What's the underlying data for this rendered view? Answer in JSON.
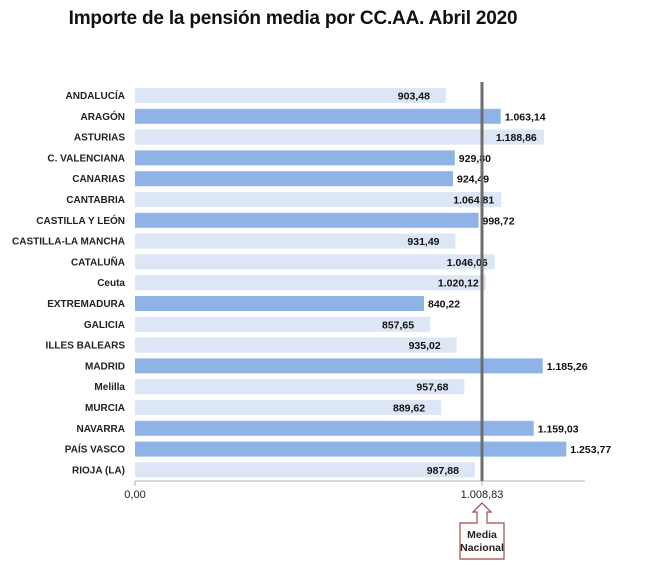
{
  "chart_data": {
    "type": "bar",
    "orientation": "horizontal",
    "title": "Importe de la pensión media por CC.AA. Abril 2020",
    "categories": [
      "ANDALUCÍA",
      "ARAGÓN",
      "ASTURIAS",
      "C. VALENCIANA",
      "CANARIAS",
      "CANTABRIA",
      "CASTILLA Y LEÓN",
      "CASTILLA-LA MANCHA",
      "CATALUÑA",
      "Ceuta",
      "EXTREMADURA",
      "GALICIA",
      "ILLES BALEARS",
      "MADRID",
      "Melilla",
      "MURCIA",
      "NAVARRA",
      "PAÍS VASCO",
      "RIOJA (LA)"
    ],
    "values": [
      903.48,
      1063.14,
      1188.86,
      929.8,
      924.49,
      1064.81,
      998.72,
      931.49,
      1046.06,
      1020.12,
      840.22,
      857.65,
      935.02,
      1185.26,
      957.68,
      889.62,
      1159.03,
      1253.77,
      987.88
    ],
    "value_labels": [
      "903,48",
      "1.063,14",
      "1.188,86",
      "929,80",
      "924,49",
      "1.064,81",
      "998,72",
      "931,49",
      "1.046,06",
      "1.020,12",
      "840,22",
      "857,65",
      "935,02",
      "1.185,26",
      "957,68",
      "889,62",
      "1.159,03",
      "1.253,77",
      "987,88"
    ],
    "highlighted": [
      false,
      true,
      false,
      true,
      true,
      false,
      true,
      false,
      false,
      false,
      true,
      false,
      false,
      true,
      false,
      false,
      true,
      true,
      false
    ],
    "colors": {
      "highlight": "#8fb3e6",
      "normal": "#dce6f4",
      "reference_line": "#6e6e6e",
      "axis": "#b0b0b0"
    },
    "reference_line": {
      "value": 1008.83,
      "label": "1.008,83",
      "callout": [
        "Media",
        "Nacional"
      ]
    },
    "x_ticks": [
      {
        "value": 0,
        "label": "0,00"
      },
      {
        "value": 1008.83,
        "label": "1.008,83"
      }
    ],
    "xlim": [
      0,
      1300
    ],
    "grid": false,
    "legend": "none"
  }
}
